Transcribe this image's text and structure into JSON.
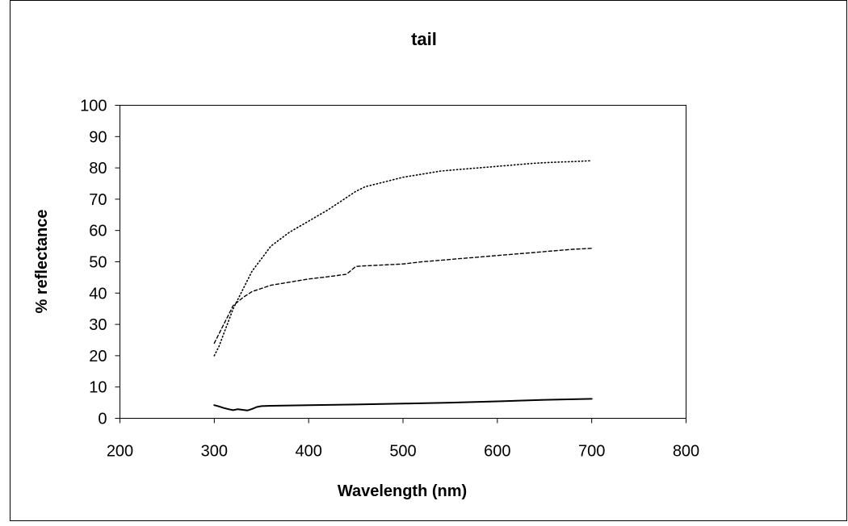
{
  "chart_data": {
    "type": "line",
    "title": "tail",
    "xlabel": "Wavelength (nm)",
    "ylabel": "% reflectance",
    "xlim": [
      200,
      800
    ],
    "ylim": [
      0,
      100
    ],
    "xticks": [
      "200",
      "300",
      "400",
      "500",
      "600",
      "700",
      "800"
    ],
    "yticks": [
      "0",
      "10",
      "20",
      "30",
      "40",
      "50",
      "60",
      "70",
      "80",
      "90",
      "100"
    ],
    "grid": false,
    "legend": "none",
    "series": [
      {
        "style": "dotted",
        "x": [
          300,
          305,
          310,
          315,
          320,
          330,
          340,
          350,
          360,
          380,
          400,
          420,
          440,
          450,
          460,
          480,
          500,
          520,
          540,
          560,
          580,
          600,
          620,
          640,
          660,
          680,
          700
        ],
        "y": [
          20,
          23,
          27,
          31,
          35,
          41,
          47,
          51,
          55,
          59.5,
          63,
          66.5,
          70.5,
          72.5,
          74,
          75.5,
          77,
          78,
          79,
          79.5,
          80,
          80.5,
          81,
          81.5,
          81.8,
          82,
          82.3
        ]
      },
      {
        "style": "dashed",
        "x": [
          300,
          305,
          310,
          315,
          320,
          330,
          340,
          350,
          360,
          380,
          400,
          420,
          440,
          450,
          460,
          480,
          500,
          520,
          540,
          560,
          580,
          600,
          620,
          640,
          660,
          680,
          700
        ],
        "y": [
          24,
          27,
          30,
          33,
          36,
          38.5,
          40.5,
          41.5,
          42.5,
          43.5,
          44.5,
          45.2,
          46,
          48.5,
          48.7,
          49,
          49.3,
          50,
          50.5,
          51,
          51.5,
          52,
          52.5,
          53,
          53.5,
          54,
          54.3
        ]
      },
      {
        "style": "solid",
        "x": [
          300,
          305,
          310,
          315,
          320,
          325,
          330,
          335,
          340,
          345,
          350,
          360,
          380,
          400,
          450,
          500,
          550,
          600,
          650,
          700
        ],
        "y": [
          4.2,
          3.8,
          3.3,
          2.9,
          2.6,
          2.9,
          2.7,
          2.5,
          3.0,
          3.6,
          3.9,
          4.0,
          4.1,
          4.2,
          4.4,
          4.7,
          5.0,
          5.4,
          5.9,
          6.2
        ]
      }
    ]
  }
}
